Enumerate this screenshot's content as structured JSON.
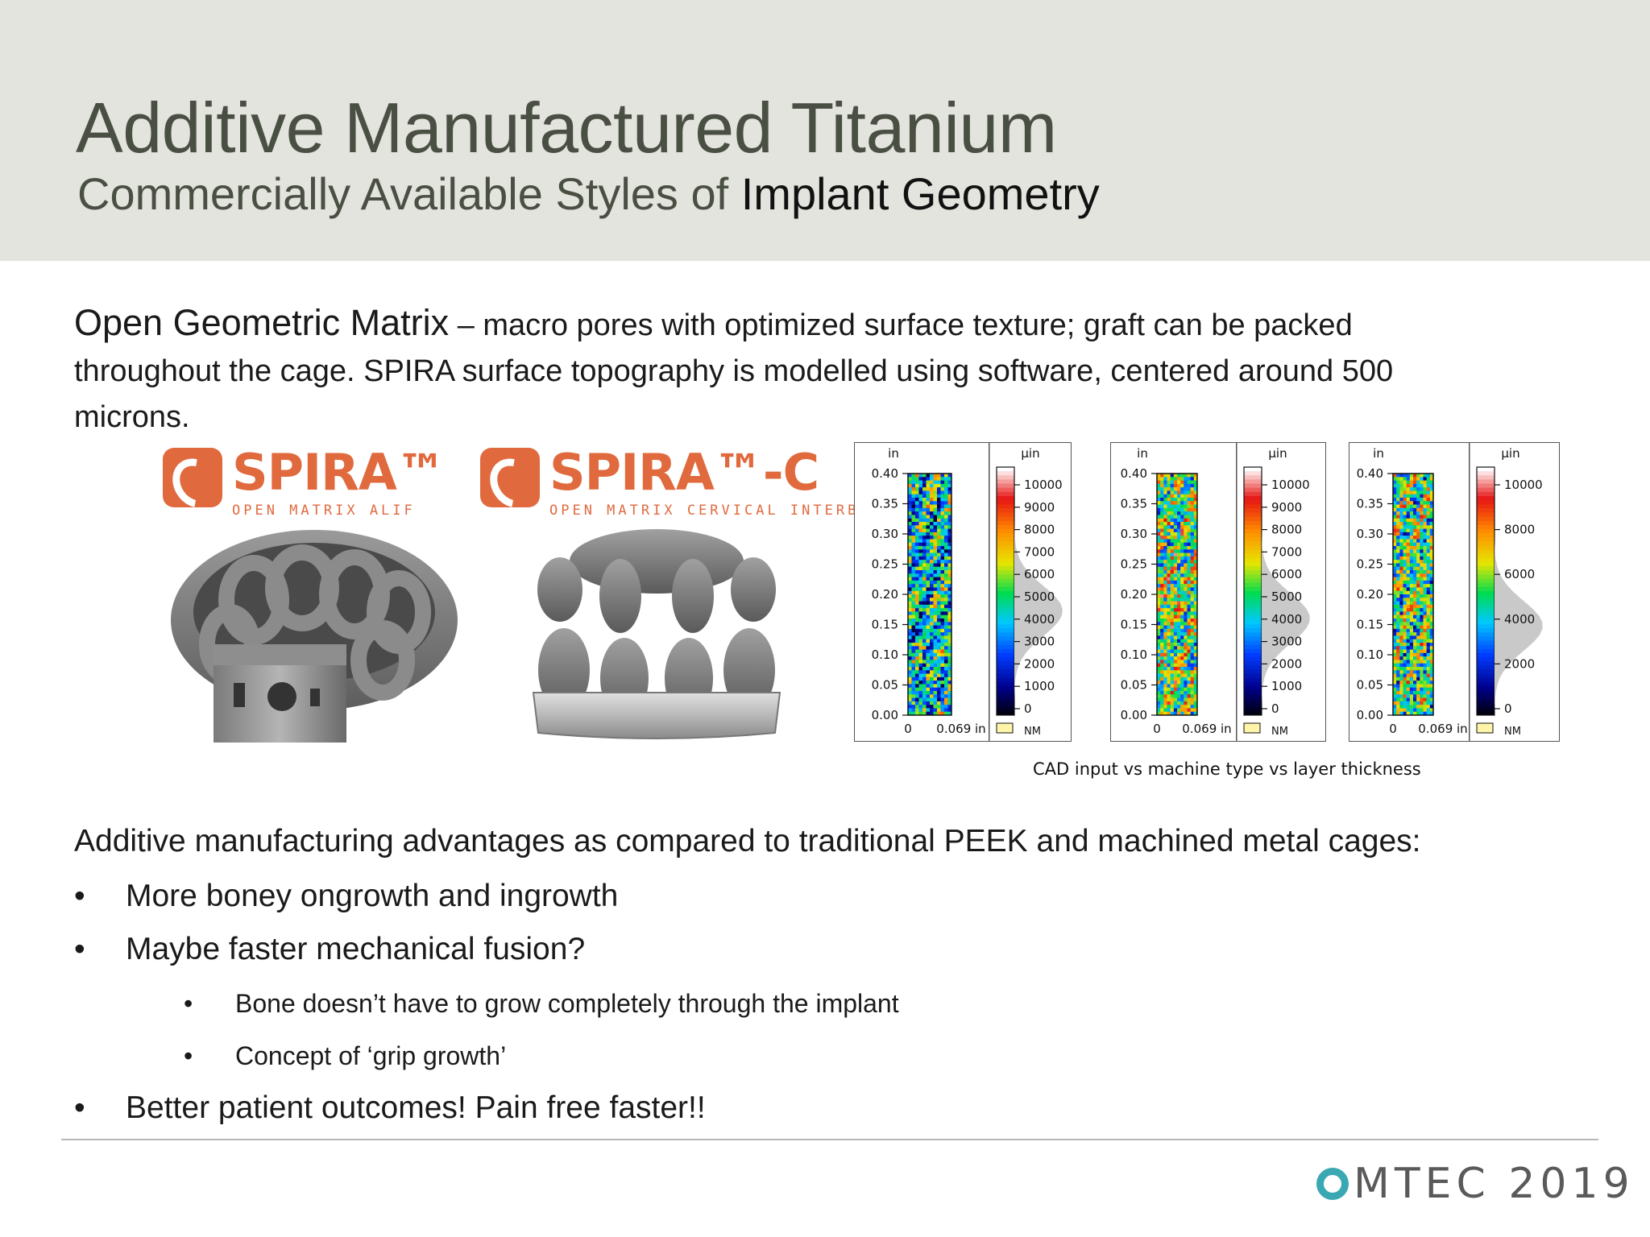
{
  "header": {
    "title": "Additive Manufactured Titanium",
    "subtitle_light": "Commercially Available Styles of ",
    "subtitle_strong": "Implant Geometry"
  },
  "intro": {
    "lead": "Open Geometric Matrix",
    "text": " – macro pores with optimized surface texture; graft can be packed throughout the cage.  SPIRA surface topography is modelled using software, centered around 500 microns."
  },
  "products": [
    {
      "brand": "SPIRA™",
      "tagline": "OPEN MATRIX ALIF"
    },
    {
      "brand": "SPIRA™-C",
      "tagline": "OPEN MATRIX CERVICAL INTERBODY"
    }
  ],
  "surface_maps": {
    "caption": "CAD input vs machine type vs layer thickness",
    "x_unit": "in",
    "scale_unit": "µin",
    "y_ticks": [
      "0.40",
      "0.35",
      "0.30",
      "0.25",
      "0.20",
      "0.15",
      "0.10",
      "0.05",
      "0.00"
    ],
    "x_ticks": [
      "0",
      "0.069 in"
    ],
    "nm_label": "NM",
    "panels": [
      {
        "scale_ticks": [
          "10000",
          "9000",
          "8000",
          "7000",
          "6000",
          "5000",
          "4000",
          "3000",
          "2000",
          "1000",
          "0"
        ]
      },
      {
        "scale_ticks": [
          "10000",
          "9000",
          "8000",
          "7000",
          "6000",
          "5000",
          "4000",
          "3000",
          "2000",
          "1000",
          "0"
        ]
      },
      {
        "scale_ticks": [
          "10000",
          "8000",
          "6000",
          "4000",
          "2000",
          "0"
        ]
      }
    ]
  },
  "advantages": {
    "lead": "Additive manufacturing advantages as compared to traditional PEEK and machined metal cages:",
    "bullet_glyph": "•",
    "items": [
      {
        "level": 1,
        "text": "More boney ongrowth and ingrowth"
      },
      {
        "level": 1,
        "text": "Maybe faster mechanical fusion?"
      },
      {
        "level": 2,
        "text": "Bone doesn’t have to grow completely through the implant"
      },
      {
        "level": 2,
        "text": "Concept of ‘grip growth’"
      },
      {
        "level": 1,
        "text": "Better patient outcomes!  Pain free faster!!"
      }
    ]
  },
  "footer": {
    "logo_text": "MTEC 2019",
    "accent_color": "#3aa8b3"
  },
  "colors": {
    "brand_orange": "#e06a3e",
    "title_gray": "#4a4f43",
    "header_band": "#e4e4df"
  }
}
